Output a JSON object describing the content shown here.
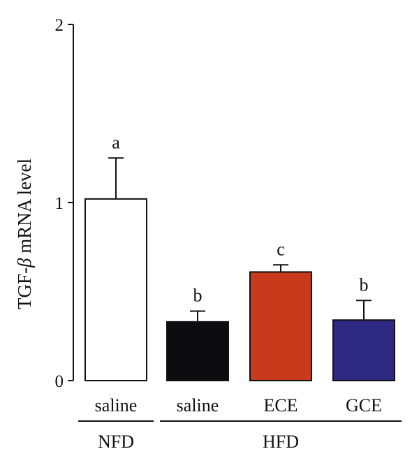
{
  "chart_data": {
    "type": "bar",
    "title": "",
    "ylabel": "TGF-β mRNA level",
    "ylabel_parts": {
      "prefix": "TGF-",
      "greek": "β",
      "suffix": " mRNA level"
    },
    "ylim": [
      0,
      2
    ],
    "yticks": [
      0,
      1,
      2
    ],
    "grid": false,
    "categories": [
      "saline",
      "saline",
      "ECE",
      "GCE"
    ],
    "groups": [
      {
        "label": "NFD",
        "members": [
          0
        ]
      },
      {
        "label": "HFD",
        "members": [
          1,
          2,
          3
        ]
      }
    ],
    "values": [
      1.02,
      0.33,
      0.61,
      0.34
    ],
    "errors": [
      0.23,
      0.06,
      0.04,
      0.11
    ],
    "significance": [
      "a",
      "b",
      "c",
      "b"
    ],
    "colors": [
      "#ffffff",
      "#0c0c0e",
      "#c9391c",
      "#2e2a82"
    ]
  }
}
